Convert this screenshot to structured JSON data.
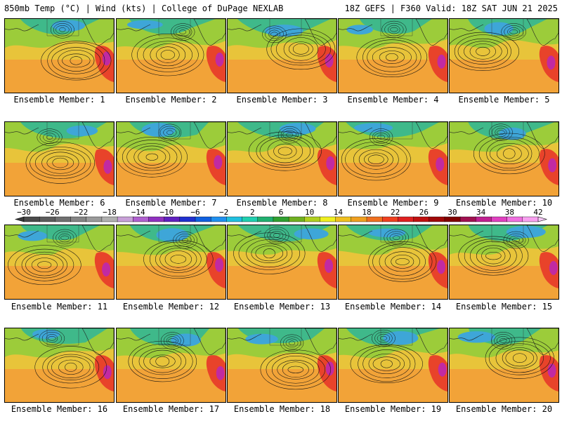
{
  "header": {
    "left": "850mb Temp (°C) | Wind (kts) | College of DuPage NEXLAB",
    "right": "18Z GEFS | F360 Valid: 18Z SAT JUN 21 2025"
  },
  "members": [
    "Ensemble Member: 1",
    "Ensemble Member: 2",
    "Ensemble Member: 3",
    "Ensemble Member: 4",
    "Ensemble Member: 5",
    "Ensemble Member: 6",
    "Ensemble Member: 7",
    "Ensemble Member: 8",
    "Ensemble Member: 9",
    "Ensemble Member: 10",
    "Ensemble Member: 11",
    "Ensemble Member: 12",
    "Ensemble Member: 13",
    "Ensemble Member: 14",
    "Ensemble Member: 15",
    "Ensemble Member: 16",
    "Ensemble Member: 17",
    "Ensemble Member: 18",
    "Ensemble Member: 19",
    "Ensemble Member: 20"
  ],
  "colorbar": {
    "labels": [
      "−30",
      "−26",
      "−22",
      "−18",
      "−14",
      "−10",
      "−6",
      "−2",
      "2",
      "6",
      "10",
      "14",
      "18",
      "22",
      "26",
      "30",
      "34",
      "38",
      "42"
    ],
    "colors": [
      "#4a4a4a",
      "#5c5c5c",
      "#707070",
      "#858585",
      "#9a9a9a",
      "#b0b0b0",
      "#c8a0d8",
      "#b060d0",
      "#9030c0",
      "#6020c0",
      "#2030d0",
      "#1060e0",
      "#2090f0",
      "#20c0e0",
      "#20d0b0",
      "#20b070",
      "#30a030",
      "#70b020",
      "#b0d020",
      "#f0f020",
      "#f0c020",
      "#f0a020",
      "#f07020",
      "#f04020",
      "#e02020",
      "#c01010",
      "#a00808",
      "#800000",
      "#a01050",
      "#c02090",
      "#e040c0",
      "#f070e0",
      "#f8a0f0"
    ]
  }
}
